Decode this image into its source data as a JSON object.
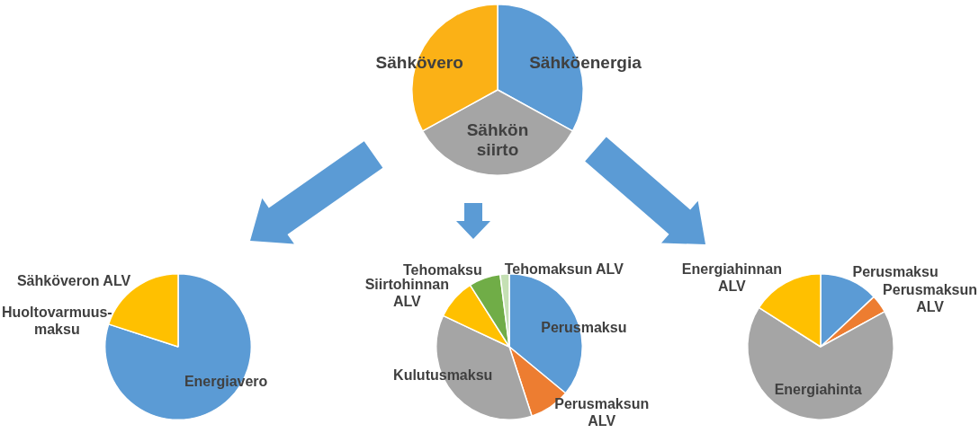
{
  "chart_data": [
    {
      "type": "pie",
      "categories": [
        "Sähköenergia",
        "Sähkön siirto",
        "Sähkövero"
      ],
      "values": [
        33,
        34,
        33
      ],
      "colors": [
        "#5b9bd5",
        "#a5a5a5",
        "#fbb116"
      ]
    },
    {
      "type": "pie",
      "categories": [
        "Energiavero",
        "Huoltovarmuus-maksu",
        "Sähköveron ALV"
      ],
      "values": [
        80,
        0,
        20
      ],
      "colors": [
        "#5b9bd5",
        "#ed7d31",
        "#ffc000"
      ]
    },
    {
      "type": "pie",
      "categories": [
        "Perusmaksu",
        "Perusmaksun ALV",
        "Kulutusmaksu",
        "Siirtohinnan ALV",
        "Tehomaksu",
        "Tehomaksun ALV"
      ],
      "values": [
        36,
        9,
        37,
        9,
        7,
        2
      ],
      "colors": [
        "#5b9bd5",
        "#ed7d31",
        "#a5a5a5",
        "#ffc000",
        "#70ad47",
        "#c5e0b4"
      ]
    },
    {
      "type": "pie",
      "categories": [
        "Perusmaksu",
        "Perusmaksun ALV",
        "Energiahinta",
        "Energiahinnan ALV"
      ],
      "values": [
        13,
        4,
        67,
        16
      ],
      "colors": [
        "#5b9bd5",
        "#ed7d31",
        "#a5a5a5",
        "#ffc000"
      ]
    }
  ]
}
